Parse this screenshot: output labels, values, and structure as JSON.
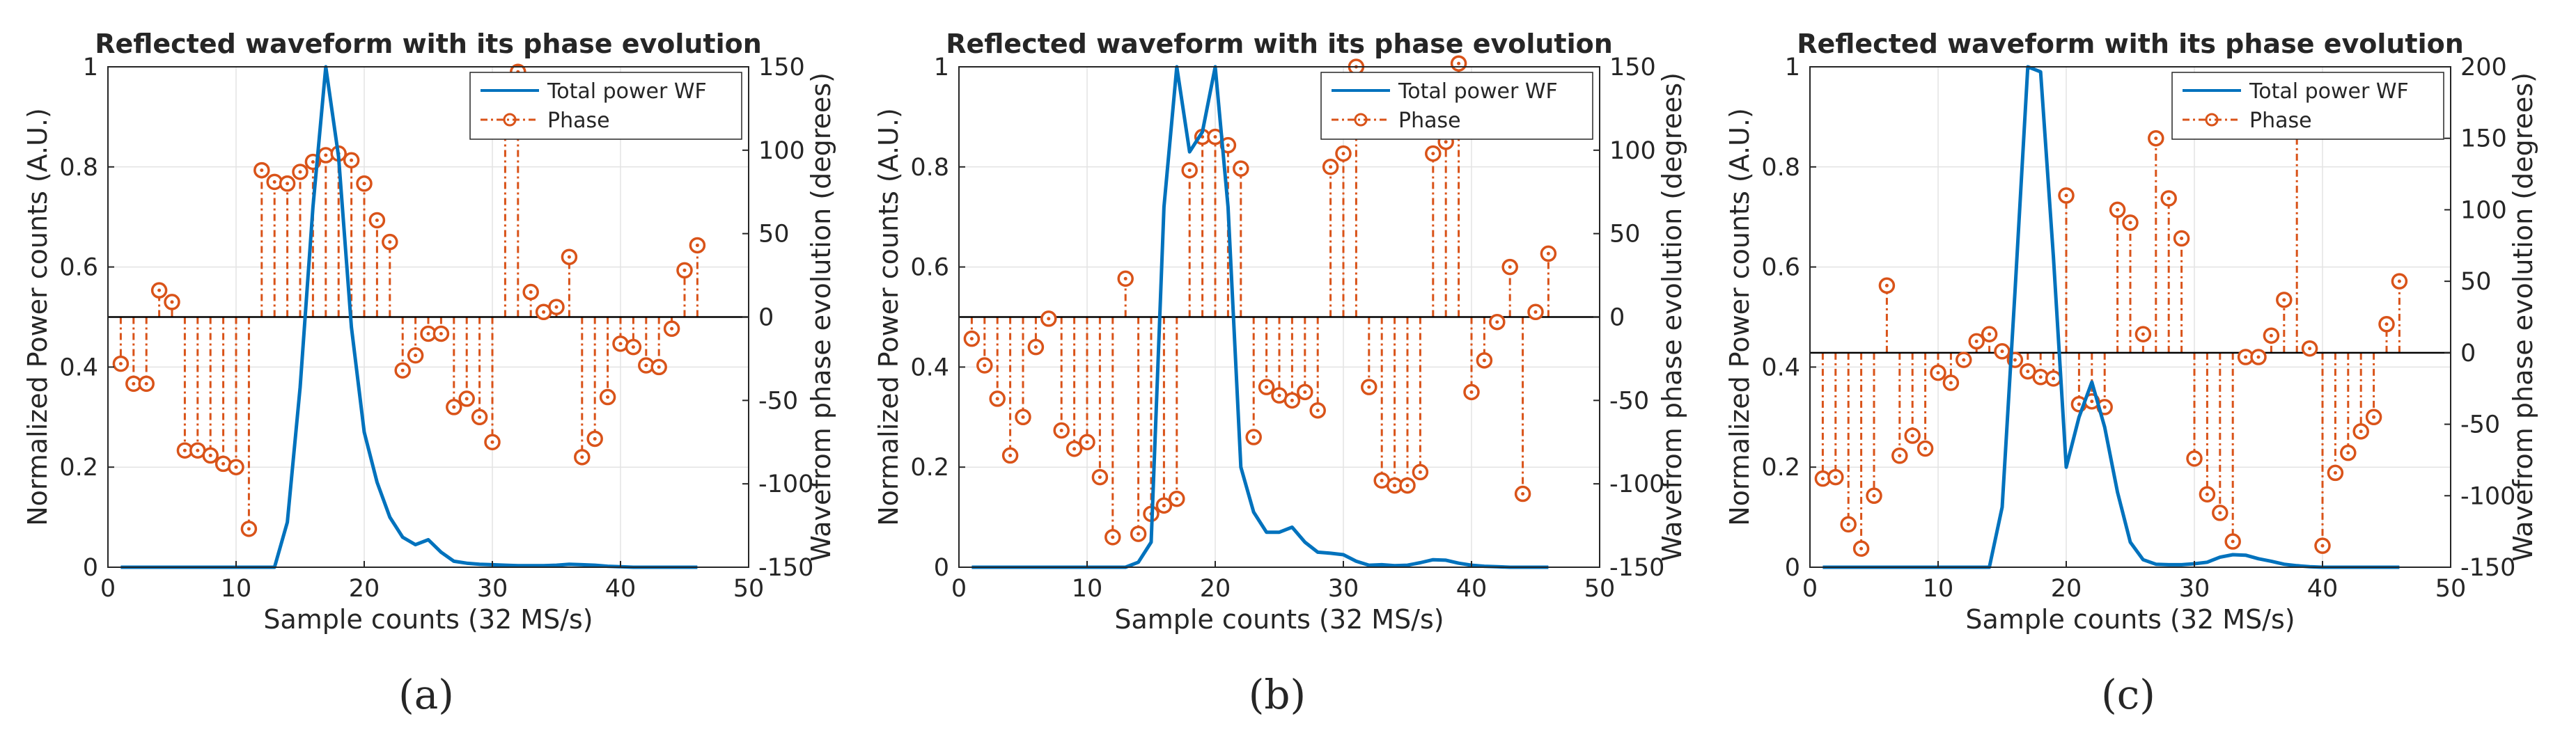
{
  "colors": {
    "power": "#0072BD",
    "phase": "#D95319",
    "grid": "#E3E3E3",
    "axis": "#262626"
  },
  "panels": [
    {
      "caption": "(a)",
      "chart_data": {
        "type": "line+stem",
        "title": "Reflected waveform with its phase evolution",
        "xlabel": "Sample counts (32 MS/s)",
        "ylabel_left": "Normalized Power counts (A.U.)",
        "ylabel_right": "Wavefrom phase evolution (degrees)",
        "xlim": [
          0,
          50
        ],
        "ylim_left": [
          0,
          1
        ],
        "ylim_right": [
          -150,
          150
        ],
        "xticks": [
          0,
          10,
          20,
          30,
          40,
          50
        ],
        "yticks_left": [
          0,
          0.2,
          0.4,
          0.6,
          0.8,
          1
        ],
        "yticks_right": [
          -150,
          -100,
          -50,
          0,
          50,
          100,
          150
        ],
        "legend": [
          "Total power WF",
          "Phase"
        ],
        "legend_position": "top-right",
        "grid": true,
        "series": [
          {
            "name": "Total power WF",
            "axis": "left",
            "style": "line",
            "x": [
              1,
              2,
              3,
              4,
              5,
              6,
              7,
              8,
              9,
              10,
              11,
              12,
              13,
              14,
              15,
              16,
              17,
              18,
              19,
              20,
              21,
              22,
              23,
              24,
              25,
              26,
              27,
              28,
              29,
              30,
              31,
              32,
              33,
              34,
              35,
              36,
              37,
              38,
              39,
              40,
              41,
              42,
              43,
              44,
              45,
              46
            ],
            "y": [
              0,
              0,
              0,
              0,
              0,
              0,
              0,
              0,
              0,
              0,
              0,
              0,
              0,
              0.09,
              0.36,
              0.72,
              1.0,
              0.82,
              0.48,
              0.27,
              0.17,
              0.1,
              0.06,
              0.045,
              0.055,
              0.03,
              0.012,
              0.008,
              0.006,
              0.005,
              0.004,
              0.003,
              0.003,
              0.003,
              0.004,
              0.006,
              0.005,
              0.004,
              0.002,
              0.001,
              0,
              0,
              0,
              0,
              0,
              0
            ]
          },
          {
            "name": "Phase",
            "axis": "right",
            "style": "stem",
            "x": [
              1,
              2,
              3,
              4,
              5,
              6,
              7,
              8,
              9,
              10,
              11,
              12,
              13,
              14,
              15,
              16,
              17,
              18,
              19,
              20,
              21,
              22,
              23,
              24,
              25,
              26,
              27,
              28,
              29,
              30,
              31,
              32,
              33,
              34,
              35,
              36,
              37,
              38,
              39,
              40,
              41,
              42,
              43,
              44,
              45,
              46
            ],
            "y": [
              -28,
              -40,
              -40,
              16,
              9,
              -80,
              -80,
              -83,
              -88,
              -90,
              -127,
              88,
              81,
              80,
              87,
              93,
              97,
              98,
              94,
              80,
              58,
              45,
              -32,
              -23,
              -10,
              -10,
              -54,
              -49,
              -60,
              -75,
              125,
              147,
              15,
              3,
              6,
              36,
              -84,
              -73,
              -48,
              -16,
              -18,
              -29,
              -30,
              -7,
              28,
              43
            ]
          }
        ]
      }
    },
    {
      "caption": "(b)",
      "chart_data": {
        "type": "line+stem",
        "title": "Reflected waveform with its phase evolution",
        "xlabel": "Sample counts (32 MS/s)",
        "ylabel_left": "Normalized Power counts (A.U.)",
        "ylabel_right": "Wavefrom phase evolution (degrees)",
        "xlim": [
          0,
          50
        ],
        "ylim_left": [
          0,
          1
        ],
        "ylim_right": [
          -150,
          150
        ],
        "xticks": [
          0,
          10,
          20,
          30,
          40,
          50
        ],
        "yticks_left": [
          0,
          0.2,
          0.4,
          0.6,
          0.8,
          1
        ],
        "yticks_right": [
          -150,
          -100,
          -50,
          0,
          50,
          100,
          150
        ],
        "legend": [
          "Total power WF",
          "Phase"
        ],
        "legend_position": "top-right",
        "grid": true,
        "series": [
          {
            "name": "Total power WF",
            "axis": "left",
            "style": "line",
            "x": [
              1,
              2,
              3,
              4,
              5,
              6,
              7,
              8,
              9,
              10,
              11,
              12,
              13,
              14,
              15,
              16,
              17,
              18,
              19,
              20,
              21,
              22,
              23,
              24,
              25,
              26,
              27,
              28,
              29,
              30,
              31,
              32,
              33,
              34,
              35,
              36,
              37,
              38,
              39,
              40,
              41,
              42,
              43,
              44,
              45,
              46
            ],
            "y": [
              0,
              0,
              0,
              0,
              0,
              0,
              0,
              0,
              0,
              0,
              0,
              0,
              0,
              0.01,
              0.05,
              0.72,
              1.0,
              0.83,
              0.87,
              1.0,
              0.72,
              0.2,
              0.11,
              0.07,
              0.07,
              0.08,
              0.05,
              0.03,
              0.028,
              0.025,
              0.012,
              0.004,
              0.005,
              0.003,
              0.004,
              0.009,
              0.015,
              0.014,
              0.008,
              0.004,
              0.002,
              0.001,
              0,
              0,
              0,
              0
            ]
          },
          {
            "name": "Phase",
            "axis": "right",
            "style": "stem",
            "x": [
              1,
              2,
              3,
              4,
              5,
              6,
              7,
              8,
              9,
              10,
              11,
              12,
              13,
              14,
              15,
              16,
              17,
              18,
              19,
              20,
              21,
              22,
              23,
              24,
              25,
              26,
              27,
              28,
              29,
              30,
              31,
              32,
              33,
              34,
              35,
              36,
              37,
              38,
              39,
              40,
              41,
              42,
              43,
              44,
              45,
              46
            ],
            "y": [
              -13,
              -29,
              -49,
              -83,
              -60,
              -18,
              -1,
              -68,
              -79,
              -75,
              -96,
              -132,
              23,
              -130,
              -118,
              -113,
              -109,
              88,
              108,
              108,
              103,
              89,
              -72,
              -42,
              -47,
              -50,
              -45,
              -56,
              90,
              98,
              150,
              -42,
              -98,
              -101,
              -101,
              -93,
              98,
              105,
              152,
              -45,
              -26,
              -3,
              30,
              -106,
              3,
              38
            ]
          }
        ]
      }
    },
    {
      "caption": "(c)",
      "chart_data": {
        "type": "line+stem",
        "title": "Reflected waveform with its phase evolution",
        "xlabel": "Sample counts (32 MS/s)",
        "ylabel_left": "Normalized Power counts (A.U.)",
        "ylabel_right": "Wavefrom phase evolution (degrees)",
        "xlim": [
          0,
          50
        ],
        "ylim_left": [
          0,
          1
        ],
        "ylim_right": [
          -150,
          200
        ],
        "xticks": [
          0,
          10,
          20,
          30,
          40,
          50
        ],
        "yticks_left": [
          0,
          0.2,
          0.4,
          0.6,
          0.8,
          1
        ],
        "yticks_right": [
          -150,
          -100,
          -50,
          0,
          50,
          100,
          150,
          200
        ],
        "legend": [
          "Total power WF",
          "Phase"
        ],
        "legend_position": "top-right",
        "grid": true,
        "series": [
          {
            "name": "Total power WF",
            "axis": "left",
            "style": "line",
            "x": [
              1,
              2,
              3,
              4,
              5,
              6,
              7,
              8,
              9,
              10,
              11,
              12,
              13,
              14,
              15,
              16,
              17,
              18,
              19,
              20,
              21,
              22,
              23,
              24,
              25,
              26,
              27,
              28,
              29,
              30,
              31,
              32,
              33,
              34,
              35,
              36,
              37,
              38,
              39,
              40,
              41,
              42,
              43,
              44,
              45,
              46
            ],
            "y": [
              0,
              0,
              0,
              0,
              0,
              0,
              0,
              0,
              0,
              0,
              0,
              0,
              0,
              0,
              0.12,
              0.55,
              1.0,
              0.99,
              0.62,
              0.2,
              0.3,
              0.37,
              0.28,
              0.15,
              0.05,
              0.015,
              0.006,
              0.005,
              0.005,
              0.007,
              0.01,
              0.02,
              0.025,
              0.024,
              0.017,
              0.012,
              0.006,
              0.003,
              0.001,
              0,
              0,
              0,
              0,
              0,
              0,
              0
            ]
          },
          {
            "name": "Phase",
            "axis": "right",
            "style": "stem",
            "x": [
              1,
              2,
              3,
              4,
              5,
              6,
              7,
              8,
              9,
              10,
              11,
              12,
              13,
              14,
              15,
              16,
              17,
              18,
              19,
              20,
              21,
              22,
              23,
              24,
              25,
              26,
              27,
              28,
              29,
              30,
              31,
              32,
              33,
              34,
              35,
              36,
              37,
              38,
              39,
              40,
              41,
              42,
              43,
              44,
              45,
              46
            ],
            "y": [
              -88,
              -87,
              -120,
              -137,
              -100,
              47,
              -72,
              -58,
              -67,
              -14,
              -21,
              -5,
              8,
              13,
              1,
              -5,
              -13,
              -17,
              -18,
              110,
              -36,
              -34,
              -38,
              100,
              91,
              13,
              150,
              108,
              80,
              -74,
              -99,
              -112,
              -132,
              -3,
              -3,
              12,
              37,
              155,
              3,
              -135,
              -84,
              -70,
              -55,
              -45,
              20,
              50
            ]
          }
        ]
      }
    }
  ]
}
